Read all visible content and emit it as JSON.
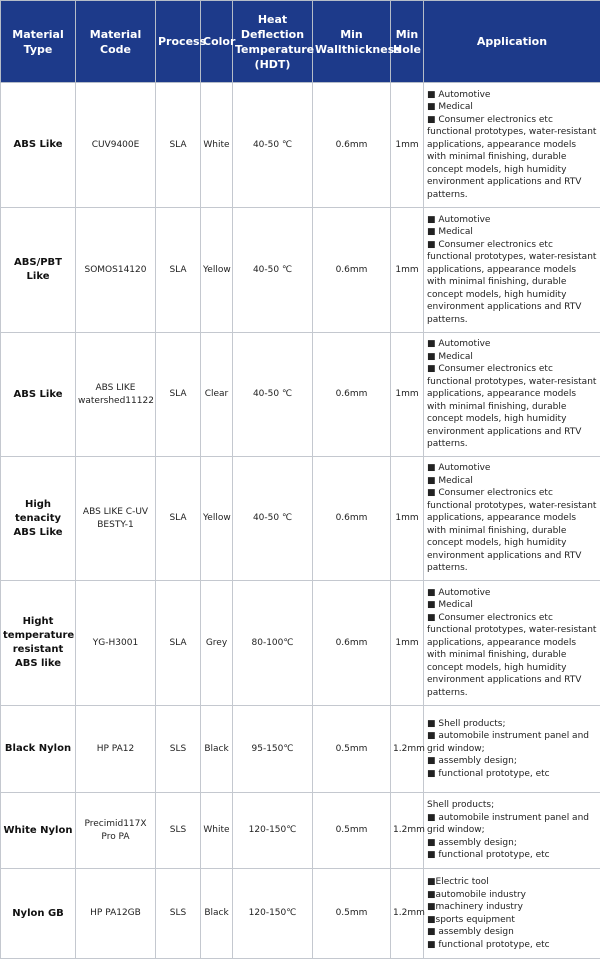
{
  "table": {
    "header": [
      "Material Type",
      "Material Code",
      "Process",
      "Color",
      "Heat Deflection Temperature (HDT)",
      "Min Wallthickness",
      "Min Hole",
      "Application"
    ],
    "rows": [
      [
        "ABS Like",
        "CUV9400E",
        "SLA",
        "White",
        "40-50 ℃",
        "0.6mm",
        "1mm",
        [
          "■ Automotive",
          "■ Medical",
          "■ Consumer electronics etc",
          "functional prototypes, water-resistant applications, appearance models with minimal finishing, durable concept models, high humidity environment applications and RTV patterns."
        ]
      ],
      [
        "ABS/PBT Like",
        "SOMOS14120",
        "SLA",
        "Yellow",
        "40-50 ℃",
        "0.6mm",
        "1mm",
        [
          "■ Automotive",
          "■ Medical",
          "■ Consumer electronics etc",
          "functional prototypes, water-resistant applications, appearance models with minimal finishing, durable concept models, high humidity environment applications and RTV patterns."
        ]
      ],
      [
        "ABS Like",
        "ABS LIKE watershed11122",
        "SLA",
        "Clear",
        "40-50 ℃",
        "0.6mm",
        "1mm",
        [
          "■ Automotive",
          "■ Medical",
          "■ Consumer electronics etc",
          "functional prototypes, water-resistant applications, appearance models with minimal finishing, durable concept models, high humidity environment applications and RTV patterns."
        ]
      ],
      [
        "High tenacity ABS Like",
        "ABS LIKE C-UV BESTY-1",
        "SLA",
        "Yellow",
        "40-50 ℃",
        "0.6mm",
        "1mm",
        [
          "■ Automotive",
          "■ Medical",
          "■ Consumer electronics etc",
          "functional prototypes, water-resistant applications, appearance models with minimal finishing, durable concept models, high humidity environment applications and RTV patterns."
        ]
      ],
      [
        "Hight temperature resistant ABS like",
        "YG-H3001",
        "SLA",
        "Grey",
        "80-100℃",
        "0.6mm",
        "1mm",
        [
          "■ Automotive",
          "■ Medical",
          "■ Consumer electronics etc",
          "functional prototypes, water-resistant applications, appearance models with minimal finishing, durable concept models, high humidity environment applications and RTV patterns."
        ]
      ],
      [
        "Black Nylon",
        "HP PA12",
        "SLS",
        "Black",
        "95-150℃",
        "0.5mm",
        "1.2mm",
        [
          "■ Shell products;",
          "■ automobile instrument panel and grid window;",
          "■ assembly design;",
          "■ functional prototype, etc"
        ]
      ],
      [
        "White Nylon",
        "Precimid117X Pro PA",
        "SLS",
        "White",
        "120-150℃",
        "0.5mm",
        "1.2mm",
        [
          "Shell products;",
          "■ automobile instrument panel and grid window;",
          "■ assembly design;",
          "■ functional prototype, etc"
        ]
      ],
      [
        "Nylon GB",
        "HP  PA12GB",
        "SLS",
        "Black",
        "120-150℃",
        "0.5mm",
        "1.2mm",
        [
          "■Electric tool",
          "■automobile industry",
          "■machinery industry",
          "■sports equipment",
          "■ assembly design",
          "■ functional prototype, etc"
        ]
      ]
    ]
  }
}
